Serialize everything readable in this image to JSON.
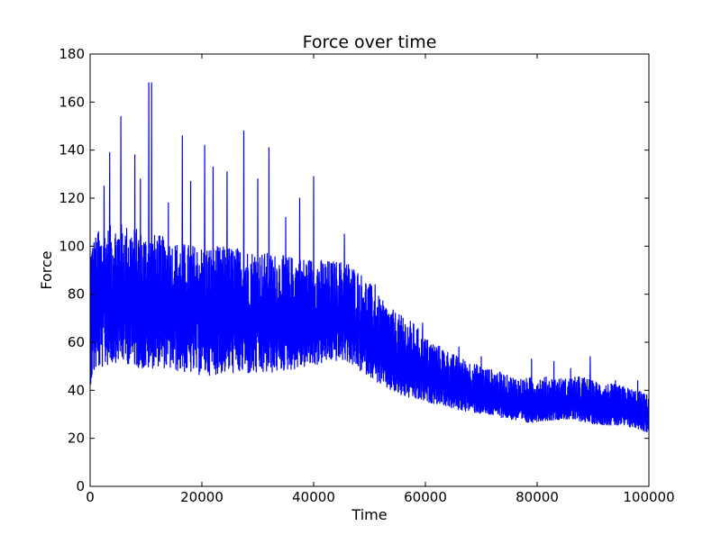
{
  "chart_data": {
    "type": "line",
    "title": "Force over time",
    "xlabel": "Time",
    "ylabel": "Force",
    "xlim": [
      0,
      100000
    ],
    "ylim": [
      0,
      180
    ],
    "xticks": [
      0,
      20000,
      40000,
      60000,
      80000,
      100000
    ],
    "xtick_labels": [
      "0",
      "20000",
      "40000",
      "60000",
      "80000",
      "100000"
    ],
    "yticks": [
      0,
      20,
      40,
      60,
      80,
      100,
      120,
      140,
      160,
      180
    ],
    "ytick_labels": [
      "0",
      "20",
      "40",
      "60",
      "80",
      "100",
      "120",
      "140",
      "160",
      "180"
    ],
    "grid": false,
    "legend": "none",
    "series_color": "#0000ff",
    "series": [
      {
        "envelope": {
          "x": [
            0,
            1000,
            3000,
            5000,
            8000,
            10000,
            12000,
            15000,
            20000,
            25000,
            30000,
            35000,
            40000,
            43000,
            46000,
            48000,
            50000,
            52000,
            55000,
            58000,
            60000,
            63000,
            65000,
            68000,
            70000,
            73000,
            75000,
            78000,
            80000,
            85000,
            88000,
            90000,
            95000,
            98000,
            100000
          ],
          "lower": [
            42,
            48,
            50,
            52,
            50,
            48,
            50,
            48,
            46,
            47,
            46,
            48,
            50,
            52,
            52,
            48,
            46,
            42,
            38,
            36,
            35,
            34,
            32,
            31,
            30,
            29,
            28,
            26,
            27,
            28,
            27,
            26,
            25,
            24,
            22
          ],
          "upper": [
            102,
            105,
            108,
            110,
            108,
            105,
            105,
            102,
            100,
            100,
            98,
            96,
            95,
            94,
            94,
            90,
            85,
            78,
            72,
            68,
            62,
            58,
            55,
            52,
            50,
            48,
            46,
            45,
            46,
            45,
            46,
            44,
            42,
            40,
            38
          ],
          "mean": [
            68,
            72,
            74,
            75,
            74,
            72,
            72,
            71,
            70,
            70,
            69,
            68,
            68,
            68,
            68,
            65,
            60,
            55,
            50,
            47,
            45,
            43,
            41,
            39,
            38,
            36,
            35,
            33,
            33,
            33,
            33,
            32,
            31,
            30,
            29
          ]
        },
        "peaks": [
          {
            "x": 1500,
            "y": 106
          },
          {
            "x": 2500,
            "y": 125
          },
          {
            "x": 3500,
            "y": 139
          },
          {
            "x": 5500,
            "y": 154
          },
          {
            "x": 8000,
            "y": 138
          },
          {
            "x": 9000,
            "y": 128
          },
          {
            "x": 10500,
            "y": 168
          },
          {
            "x": 11000,
            "y": 168
          },
          {
            "x": 14000,
            "y": 118
          },
          {
            "x": 16500,
            "y": 146
          },
          {
            "x": 18000,
            "y": 127
          },
          {
            "x": 20500,
            "y": 142
          },
          {
            "x": 22000,
            "y": 133
          },
          {
            "x": 24500,
            "y": 131
          },
          {
            "x": 27500,
            "y": 148
          },
          {
            "x": 30000,
            "y": 128
          },
          {
            "x": 32000,
            "y": 141
          },
          {
            "x": 35000,
            "y": 112
          },
          {
            "x": 37500,
            "y": 120
          },
          {
            "x": 40000,
            "y": 129
          },
          {
            "x": 45500,
            "y": 105
          },
          {
            "x": 51000,
            "y": 84
          },
          {
            "x": 56000,
            "y": 70
          },
          {
            "x": 59500,
            "y": 68
          },
          {
            "x": 66000,
            "y": 58
          },
          {
            "x": 70000,
            "y": 54
          },
          {
            "x": 79000,
            "y": 53
          },
          {
            "x": 83000,
            "y": 52
          },
          {
            "x": 86000,
            "y": 49
          },
          {
            "x": 89500,
            "y": 54
          },
          {
            "x": 94000,
            "y": 44
          },
          {
            "x": 98000,
            "y": 44
          }
        ]
      }
    ]
  }
}
